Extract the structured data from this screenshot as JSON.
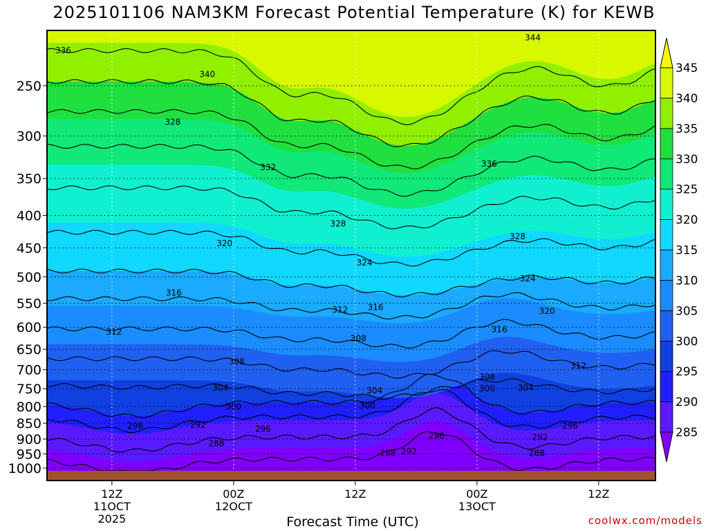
{
  "header": {
    "title": "2025101106 NAM3KM Forecast Potential Temperature (K) for KEWB",
    "credit": "coolwx.com/models"
  },
  "chart_data": {
    "type": "heatmap",
    "title": "2025101106 NAM3KM Forecast Potential Temperature (K) for KEWB",
    "xlabel": "Forecast Time (UTC)",
    "ylabel": "",
    "y_axis_scale": "log",
    "y_axis_inverted": true,
    "y_ticks": [
      250,
      300,
      350,
      400,
      450,
      500,
      550,
      600,
      650,
      700,
      750,
      800,
      850,
      900,
      950,
      1000
    ],
    "x_ticks": [
      {
        "h": 6,
        "lines": [
          "12Z",
          "11OCT",
          "2025"
        ]
      },
      {
        "h": 18,
        "lines": [
          "00Z",
          "12OCT"
        ]
      },
      {
        "h": 30,
        "lines": [
          "12Z"
        ]
      },
      {
        "h": 42,
        "lines": [
          "00Z",
          "13OCT"
        ]
      },
      {
        "h": 54,
        "lines": [
          "12Z"
        ]
      }
    ],
    "grid": true,
    "colorbar": {
      "levels": [
        285,
        290,
        295,
        300,
        305,
        310,
        315,
        320,
        325,
        330,
        335,
        340,
        345
      ],
      "colors": [
        "#8000ff",
        "#5a1aff",
        "#2020ff",
        "#1040e0",
        "#2060f0",
        "#1a8cff",
        "#1aaaff",
        "#10d8ff",
        "#10f0d0",
        "#10e878",
        "#20e040",
        "#90f000",
        "#d8f800",
        "#f8f800"
      ],
      "placement": "right"
    },
    "contour_labels": [
      {
        "value": 336,
        "h": 1.2,
        "p": 220
      },
      {
        "value": 340,
        "h": 15.4,
        "p": 240
      },
      {
        "value": 344,
        "h": 47.5,
        "p": 210
      },
      {
        "value": 328,
        "h": 12.0,
        "p": 285
      },
      {
        "value": 332,
        "h": 21.4,
        "p": 336
      },
      {
        "value": 336,
        "h": 43.2,
        "p": 332
      },
      {
        "value": 328,
        "h": 28.3,
        "p": 412
      },
      {
        "value": 328,
        "h": 46.0,
        "p": 432
      },
      {
        "value": 320,
        "h": 17.1,
        "p": 443
      },
      {
        "value": 324,
        "h": 30.9,
        "p": 475
      },
      {
        "value": 324,
        "h": 47.0,
        "p": 503
      },
      {
        "value": 316,
        "h": 12.1,
        "p": 530
      },
      {
        "value": 312,
        "h": 28.5,
        "p": 563
      },
      {
        "value": 316,
        "h": 32.0,
        "p": 558
      },
      {
        "value": 320,
        "h": 48.9,
        "p": 566
      },
      {
        "value": 316,
        "h": 44.2,
        "p": 605
      },
      {
        "value": 312,
        "h": 6.2,
        "p": 610
      },
      {
        "value": 308,
        "h": 30.3,
        "p": 625
      },
      {
        "value": 308,
        "h": 18.3,
        "p": 680
      },
      {
        "value": 312,
        "h": 52.0,
        "p": 690
      },
      {
        "value": 308,
        "h": 43.0,
        "p": 718
      },
      {
        "value": 304,
        "h": 16.7,
        "p": 748
      },
      {
        "value": 304,
        "h": 31.9,
        "p": 755
      },
      {
        "value": 300,
        "h": 43.0,
        "p": 750
      },
      {
        "value": 304,
        "h": 46.8,
        "p": 748
      },
      {
        "value": 300,
        "h": 18.0,
        "p": 800
      },
      {
        "value": 300,
        "h": 31.2,
        "p": 798
      },
      {
        "value": 296,
        "h": 8.3,
        "p": 858
      },
      {
        "value": 292,
        "h": 14.5,
        "p": 855
      },
      {
        "value": 296,
        "h": 20.9,
        "p": 868
      },
      {
        "value": 296,
        "h": 38.0,
        "p": 890
      },
      {
        "value": 296,
        "h": 51.2,
        "p": 858
      },
      {
        "value": 292,
        "h": 48.2,
        "p": 895
      },
      {
        "value": 288,
        "h": 16.3,
        "p": 915
      },
      {
        "value": 288,
        "h": 33.2,
        "p": 948
      },
      {
        "value": 292,
        "h": 35.3,
        "p": 942
      },
      {
        "value": 288,
        "h": 47.9,
        "p": 948
      }
    ]
  }
}
